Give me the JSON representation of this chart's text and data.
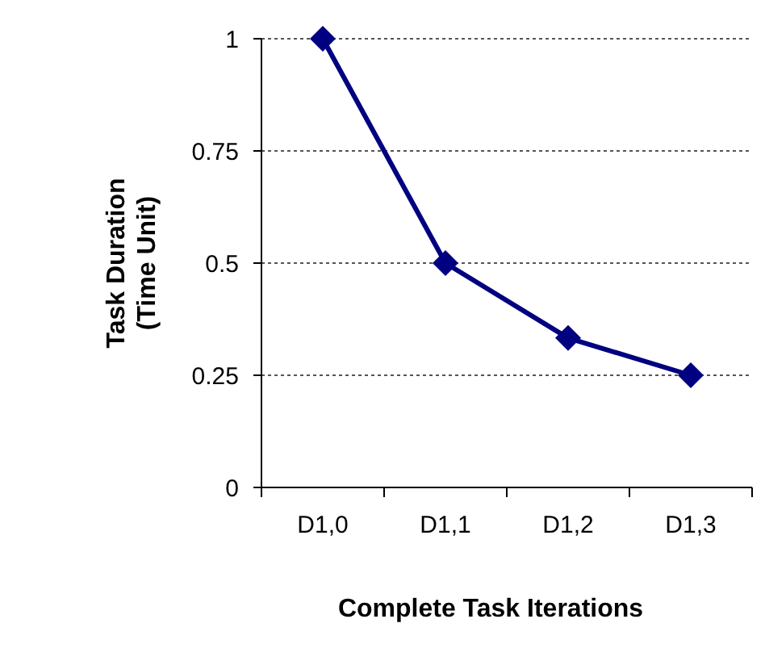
{
  "chart_data": {
    "type": "line",
    "xlabel": "Complete Task Iterations",
    "ylabel": "Task Duration (Time Unit)",
    "categories": [
      "D1,0",
      "D1,1",
      "D1,2",
      "D1,3"
    ],
    "series": [
      {
        "color": "#000080",
        "values": [
          1,
          0.5,
          0.333,
          0.25
        ]
      }
    ],
    "ylim": [
      0,
      1
    ],
    "yticks": [
      0,
      0.25,
      0.5,
      0.75,
      1
    ],
    "grid": "y",
    "marker": "diamond",
    "line_style": "solid"
  }
}
